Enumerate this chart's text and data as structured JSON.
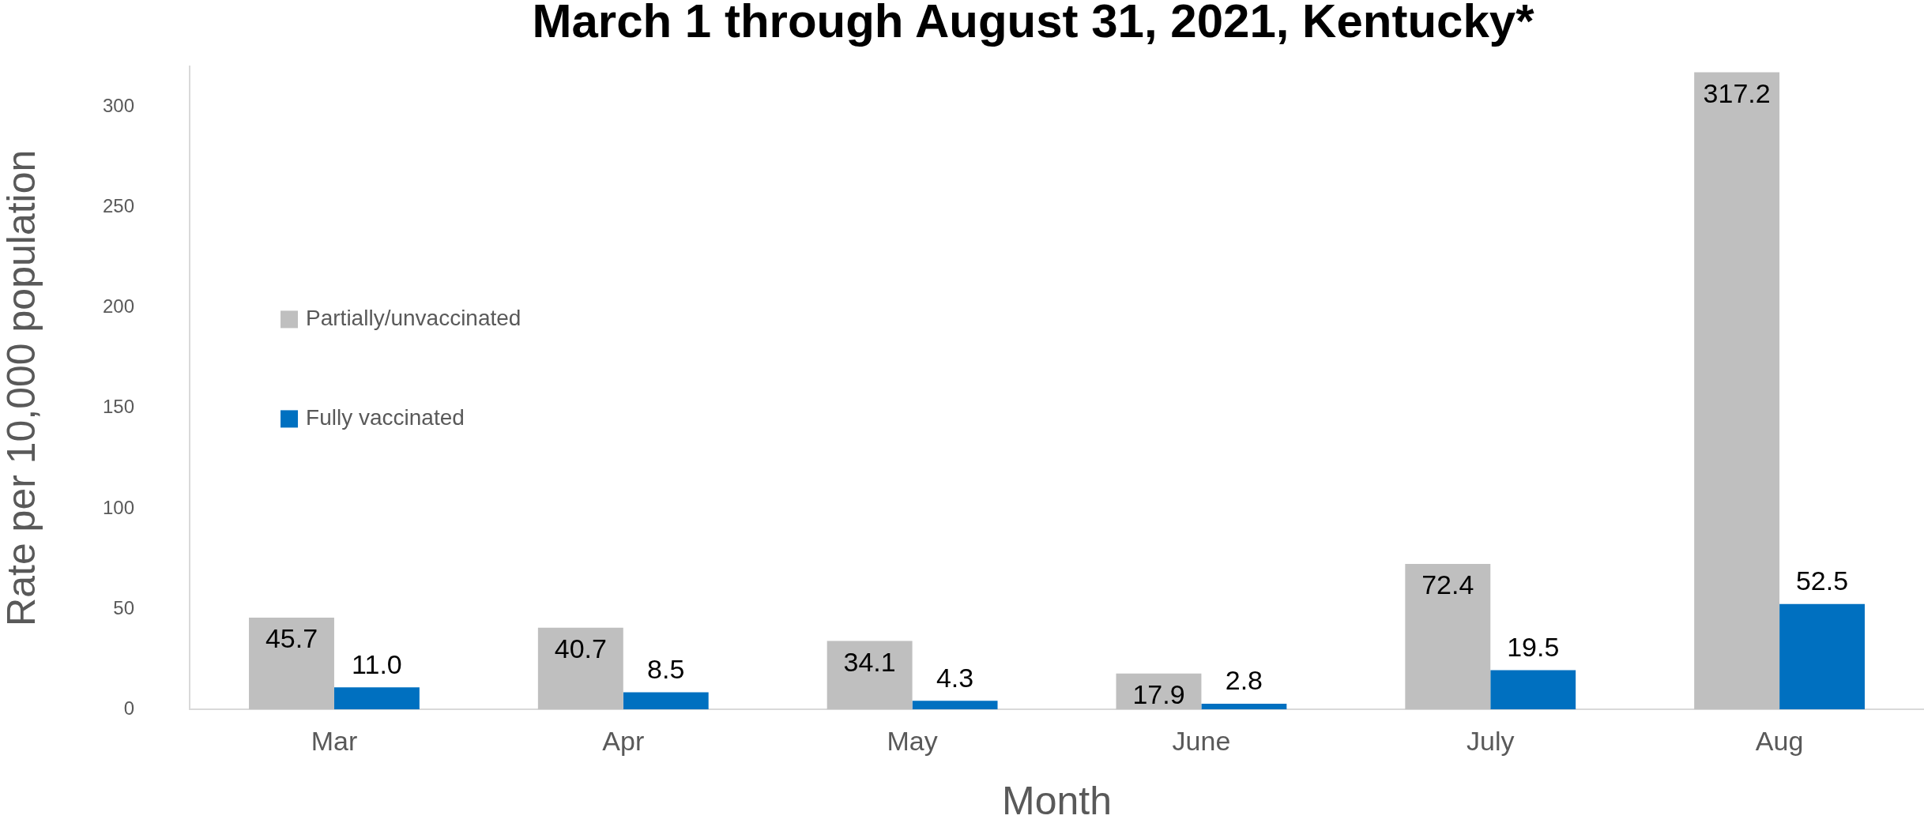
{
  "chart_data": {
    "type": "bar",
    "title": "March 1 through August 31, 2021, Kentucky*",
    "xlabel": "Month",
    "ylabel": "Rate per 10,000 population",
    "categories": [
      "Mar",
      "Apr",
      "May",
      "June",
      "July",
      "Aug"
    ],
    "series": [
      {
        "name": "Partially/unvaccinated",
        "color": "#bfbfbf",
        "values": [
          45.7,
          40.7,
          34.1,
          17.9,
          72.4,
          317.2
        ],
        "value_labels": [
          "45.7",
          "40.7",
          "34.1",
          "17.9",
          "72.4",
          "317.2"
        ]
      },
      {
        "name": "Fully vaccinated",
        "color": "#0070c0",
        "values": [
          11.0,
          8.5,
          4.3,
          2.8,
          19.5,
          52.5
        ],
        "value_labels": [
          "11.0",
          "8.5",
          "4.3",
          "2.8",
          "19.5",
          "52.5"
        ]
      }
    ],
    "ylim": [
      0,
      320
    ],
    "yticks": [
      0,
      50,
      100,
      150,
      200,
      250,
      300
    ],
    "grid": false,
    "legend": "left"
  }
}
